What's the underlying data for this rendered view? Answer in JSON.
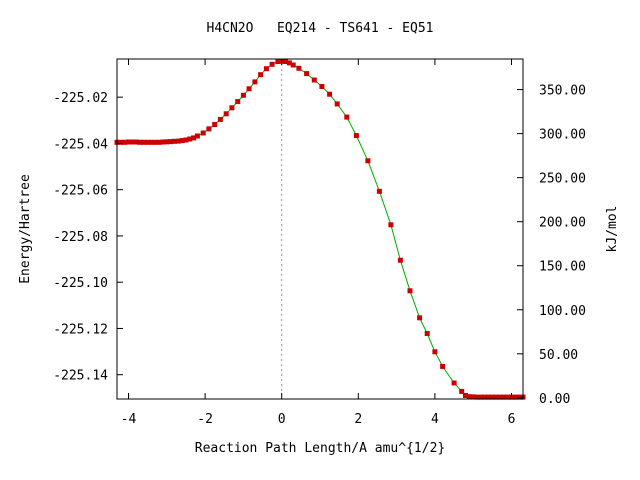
{
  "chart_data": {
    "type": "line",
    "title": "H4CN2O   EQ214 - TS641 - EQ51",
    "xlabel": "Reaction Path Length/A amu^{1/2}",
    "ylabel": "Energy/Hartree",
    "y2label": "kJ/mol",
    "xlim": [
      -4.3,
      6.3
    ],
    "ylim": [
      -225.1505,
      -225.0035
    ],
    "y2lim": [
      -1.3,
      384.7
    ],
    "x_ticks": [
      -4,
      -2,
      0,
      2,
      4,
      6
    ],
    "x_tick_labels": [
      "-4",
      "-2",
      "0",
      "2",
      "4",
      "6"
    ],
    "y_ticks": [
      -225.02,
      -225.04,
      -225.06,
      -225.08,
      -225.1,
      -225.12,
      -225.14
    ],
    "y_tick_labels": [
      "-225.02",
      "-225.04",
      "-225.06",
      "-225.08",
      "-225.10",
      "-225.12",
      "-225.14"
    ],
    "y2_ticks": [
      350,
      300,
      250,
      200,
      150,
      100,
      50,
      0
    ],
    "y2_tick_labels": [
      "350.00",
      "300.00",
      "250.00",
      "200.00",
      "150.00",
      "100.00",
      "50.00",
      "0.00"
    ],
    "ts_marker_x": 0,
    "line_color": "#00aa00",
    "point_color": "#cc0000",
    "ts_line_color": "#999999",
    "series": [
      {
        "x": [
          -4.3,
          -4.2,
          -4.1,
          -4.0,
          -3.9,
          -3.8,
          -3.7,
          -3.6,
          -3.5,
          -3.4,
          -3.3,
          -3.2,
          -3.1,
          -3.0,
          -2.9,
          -2.8,
          -2.7,
          -2.6,
          -2.5,
          -2.4,
          -2.3,
          -2.2,
          -2.05,
          -1.9,
          -1.75,
          -1.6,
          -1.45,
          -1.3,
          -1.15,
          -1.0,
          -0.85,
          -0.7,
          -0.55,
          -0.4,
          -0.25,
          -0.1,
          0.0,
          0.1,
          0.2,
          0.3,
          0.45,
          0.65,
          0.85,
          1.05,
          1.25,
          1.45,
          1.7,
          1.95,
          2.25,
          2.55,
          2.85,
          3.1,
          3.35,
          3.6,
          3.8,
          4.0,
          4.2,
          4.5,
          4.7,
          4.8,
          4.9,
          5.0,
          5.1,
          5.2,
          5.3,
          5.4,
          5.5,
          5.6,
          5.7,
          5.8,
          5.9,
          6.0,
          6.1,
          6.2,
          6.3
        ],
        "y": [
          -225.0395,
          -225.0395,
          -225.0395,
          -225.0394,
          -225.0394,
          -225.0394,
          -225.0395,
          -225.0395,
          -225.0395,
          -225.0395,
          -225.0395,
          -225.0395,
          -225.0394,
          -225.0393,
          -225.0392,
          -225.0391,
          -225.039,
          -225.0388,
          -225.0385,
          -225.0381,
          -225.0376,
          -225.0368,
          -225.0355,
          -225.0337,
          -225.0318,
          -225.0296,
          -225.0272,
          -225.0246,
          -225.0219,
          -225.0192,
          -225.0164,
          -225.0134,
          -225.0103,
          -225.0077,
          -225.0058,
          -225.0046,
          -225.0044,
          -225.0046,
          -225.0052,
          -225.0061,
          -225.0075,
          -225.0098,
          -225.0126,
          -225.0154,
          -225.0187,
          -225.0229,
          -225.0286,
          -225.0366,
          -225.0475,
          -225.0607,
          -225.0752,
          -225.0905,
          -225.1037,
          -225.1154,
          -225.1222,
          -225.1301,
          -225.1364,
          -225.1436,
          -225.1472,
          -225.149,
          -225.1495,
          -225.1496,
          -225.1497,
          -225.1497,
          -225.1497,
          -225.1497,
          -225.1497,
          -225.1497,
          -225.1497,
          -225.1497,
          -225.1497,
          -225.1497,
          -225.1497,
          -225.1497,
          -225.1497
        ]
      }
    ]
  }
}
